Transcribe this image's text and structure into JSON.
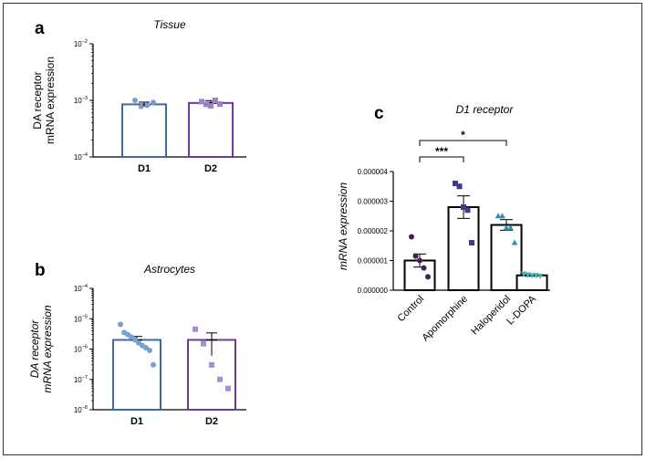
{
  "panels": [
    {
      "letter": "a"
    },
    {
      "letter": "b"
    },
    {
      "letter": "c"
    }
  ],
  "chart_data": [
    {
      "id": "a",
      "type": "bar",
      "title": "Tissue",
      "ylabel_lines": [
        "DA receptor",
        "mRNA expression"
      ],
      "yscale": "log",
      "ylim": [
        0.0001,
        0.01
      ],
      "yticks": [
        {
          "base": "10",
          "exp": "−2"
        },
        {
          "base": "10",
          "exp": "−3"
        },
        {
          "base": "10",
          "exp": "−4"
        }
      ],
      "categories": [
        "D1",
        "D2"
      ],
      "bar_colors": [
        "#3d6aa0",
        "#6a3c9b"
      ],
      "point_colors": [
        "#7a9fd4",
        "#9b80cc"
      ],
      "values": [
        0.00085,
        0.0009
      ],
      "errors": [
        8e-05,
        9e-05
      ],
      "points": [
        [
          0.001,
          0.00078,
          0.00082,
          0.00092
        ],
        [
          0.00095,
          0.00085,
          0.0008,
          0.001,
          0.00086
        ]
      ]
    },
    {
      "id": "b",
      "type": "bar",
      "title": "Astrocytes",
      "ylabel_lines": [
        "DA receptor",
        "mRNA expression"
      ],
      "yscale": "log",
      "ylim": [
        1e-08,
        0.0001
      ],
      "yticks": [
        {
          "base": "10",
          "exp": "−4"
        },
        {
          "base": "10",
          "exp": "−5"
        },
        {
          "base": "10",
          "exp": "−6"
        },
        {
          "base": "10",
          "exp": "−7"
        },
        {
          "base": "10",
          "exp": "−8"
        }
      ],
      "categories": [
        "D1",
        "D2"
      ],
      "bar_colors": [
        "#3d6aa0",
        "#6a3c9b"
      ],
      "point_colors": [
        "#7a9fd4",
        "#a98fd2"
      ],
      "values": [
        2e-06,
        2e-06
      ],
      "errors": [
        6e-07,
        1.4e-06
      ],
      "points": [
        [
          6.5e-06,
          3.5e-06,
          3e-06,
          2.5e-06,
          2e-06,
          1.6e-06,
          1.3e-06,
          1.1e-06,
          9e-07,
          3e-07
        ],
        [
          4.5e-06,
          1.5e-06,
          3e-07,
          1e-07,
          5e-08
        ]
      ]
    },
    {
      "id": "c",
      "type": "bar",
      "title": "D1 receptor",
      "ylabel": "mRNA expression",
      "yscale": "linear",
      "ylim": [
        0,
        4e-06
      ],
      "yticks": [
        "0.000004",
        "0.000003",
        "0.000002",
        "0.000001",
        "0.000000"
      ],
      "ytick_values": [
        4e-06,
        3e-06,
        2e-06,
        1e-06,
        0
      ],
      "categories": [
        "Control",
        "Apomorphine",
        "Haloperidol",
        "L-DOPA"
      ],
      "values": [
        1e-06,
        2.8e-06,
        2.2e-06,
        5e-07
      ],
      "errors": [
        2.2e-07,
        3.8e-07,
        1.8e-07,
        3e-08
      ],
      "point_colors": [
        "#4a1a5a",
        "#3d3a8a",
        "#2f8fa8",
        "#3fb0b0"
      ],
      "point_shapes": [
        "circle",
        "square",
        "triangle",
        "triangle-down"
      ],
      "points": [
        [
          1.8e-06,
          1.15e-06,
          1e-06,
          7.5e-07,
          4.5e-07
        ],
        [
          3.6e-06,
          3.5e-06,
          2.8e-06,
          2.7e-06,
          1.6e-06
        ],
        [
          2.5e-06,
          2.5e-06,
          2.1e-06,
          2.1e-06,
          1.6e-06
        ],
        [
          5.5e-07,
          5.2e-07,
          5e-07,
          5e-07,
          4.8e-07
        ]
      ],
      "significance": [
        {
          "from": 0,
          "to": 1,
          "label": "***"
        },
        {
          "from": 0,
          "to": 2,
          "label": "*"
        }
      ]
    }
  ]
}
